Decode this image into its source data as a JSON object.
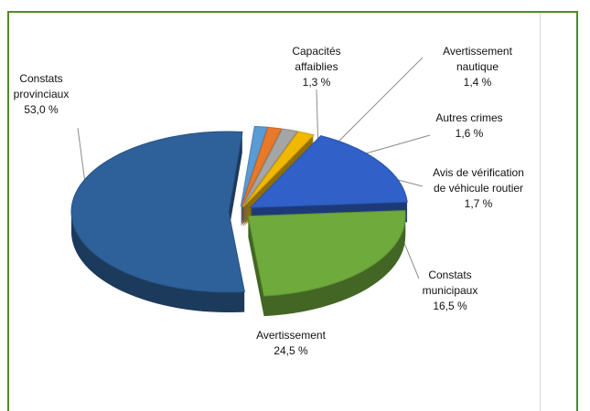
{
  "chart_data": {
    "type": "pie",
    "categories": [
      "Capacités affaiblies",
      "Avertissement nautique",
      "Autres crimes",
      "Avis de vérification de véhicule routier",
      "Constats municipaux",
      "Avertissement",
      "Constats provinciaux"
    ],
    "values": [
      1.3,
      1.4,
      1.6,
      1.7,
      16.5,
      24.5,
      53.0
    ],
    "value_labels": [
      "1,3 %",
      "1,4 %",
      "1,6 %",
      "1,7 %",
      "16,5 %",
      "24,5 %",
      "53,0 %"
    ],
    "colors": [
      "#5b9bd5",
      "#e8792a",
      "#a5a5a5",
      "#f0b800",
      "#3060c8",
      "#6faa3c",
      "#2e6199"
    ]
  }
}
